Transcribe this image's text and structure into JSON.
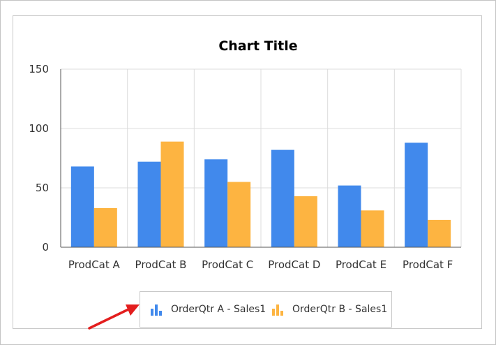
{
  "chart_data": {
    "type": "bar",
    "title": "Chart Title",
    "xlabel": "",
    "ylabel": "",
    "categories": [
      "ProdCat A",
      "ProdCat B",
      "ProdCat C",
      "ProdCat D",
      "ProdCat E",
      "ProdCat F"
    ],
    "series": [
      {
        "name": "OrderQtr A - Sales1",
        "color": "#4189ec",
        "values": [
          68,
          72,
          74,
          82,
          52,
          88
        ]
      },
      {
        "name": "OrderQtr B - Sales1",
        "color": "#fdb441",
        "values": [
          33,
          89,
          55,
          43,
          31,
          23
        ]
      }
    ],
    "ylim": [
      0,
      150
    ],
    "yticks": [
      0,
      50,
      100,
      150
    ],
    "grid": true,
    "legend_position": "bottom"
  },
  "colors": {
    "gridline": "#dcdcdc",
    "axis": "#555555",
    "annotation_arrow": "#e31e1e"
  },
  "icons": {
    "legend_series_icon": "bar-chart-icon",
    "annotation": "red-arrow-icon"
  }
}
